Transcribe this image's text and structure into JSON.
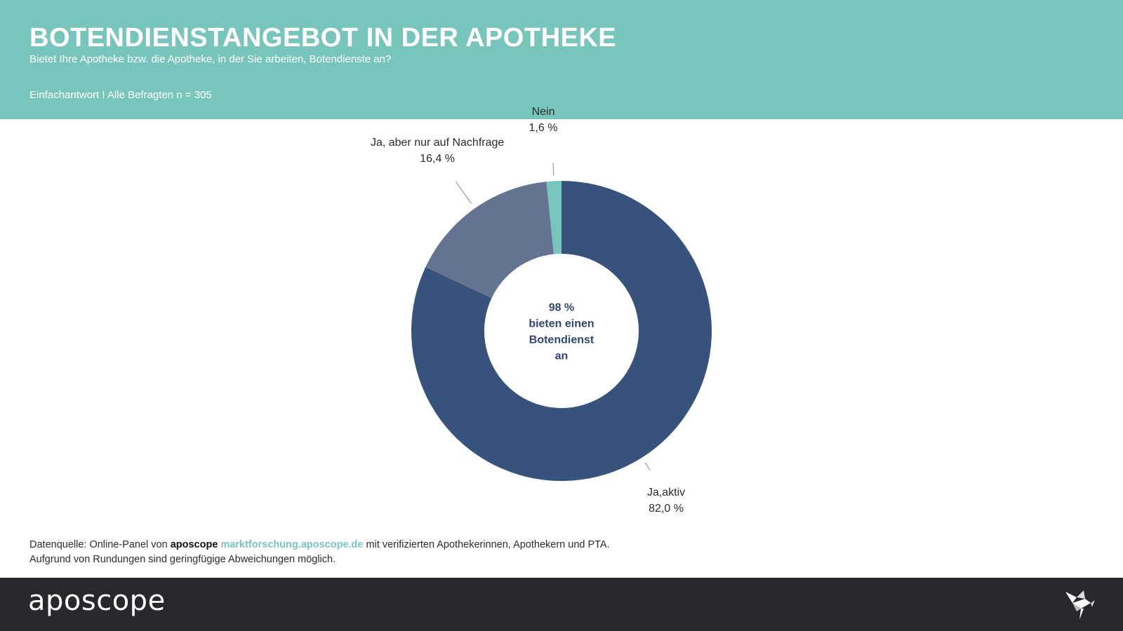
{
  "header": {
    "title": "BOTENDIENSTANGEBOT IN DER APOTHEKE",
    "subtitle": "Bietet Ihre Apotheke bzw. die Apotheke, in der Sie arbeiten, Botendienste an?",
    "base": "Einfachantwort I Alle Befragten n = 305"
  },
  "chart_data": {
    "type": "pie",
    "variant": "donut",
    "title": "BOTENDIENSTANGEBOT IN DER APOTHEKE",
    "slices": [
      {
        "label": "Ja,aktiv",
        "value": 82.0,
        "value_label": "82,0 %",
        "color": "#37537c"
      },
      {
        "label": "Ja, aber nur auf Nachfrage",
        "value": 16.4,
        "value_label": "16,4 %",
        "color": "#647390"
      },
      {
        "label": "Nein",
        "value": 1.6,
        "value_label": "1,6 %",
        "color": "#78c5bc"
      }
    ],
    "center_text": [
      "98 %",
      "bieten einen",
      "Botendienst",
      "an"
    ]
  },
  "source": {
    "prefix": "Datenquelle: Online-Panel von ",
    "brand": "aposcope",
    "url": "marktforschung.aposcope.de",
    "suffix": " mit verifizierten Apothekerinnen, Apothekern und PTA.",
    "note": "Aufgrund von Rundungen sind geringfügige Abweichungen möglich."
  },
  "footer": {
    "logo": "aposcope",
    "bird_icon": "origami-bird-icon"
  },
  "colors": {
    "header_bg": "#78c5bc",
    "footer_bg": "#27282c",
    "center_text": "#2f4770"
  }
}
